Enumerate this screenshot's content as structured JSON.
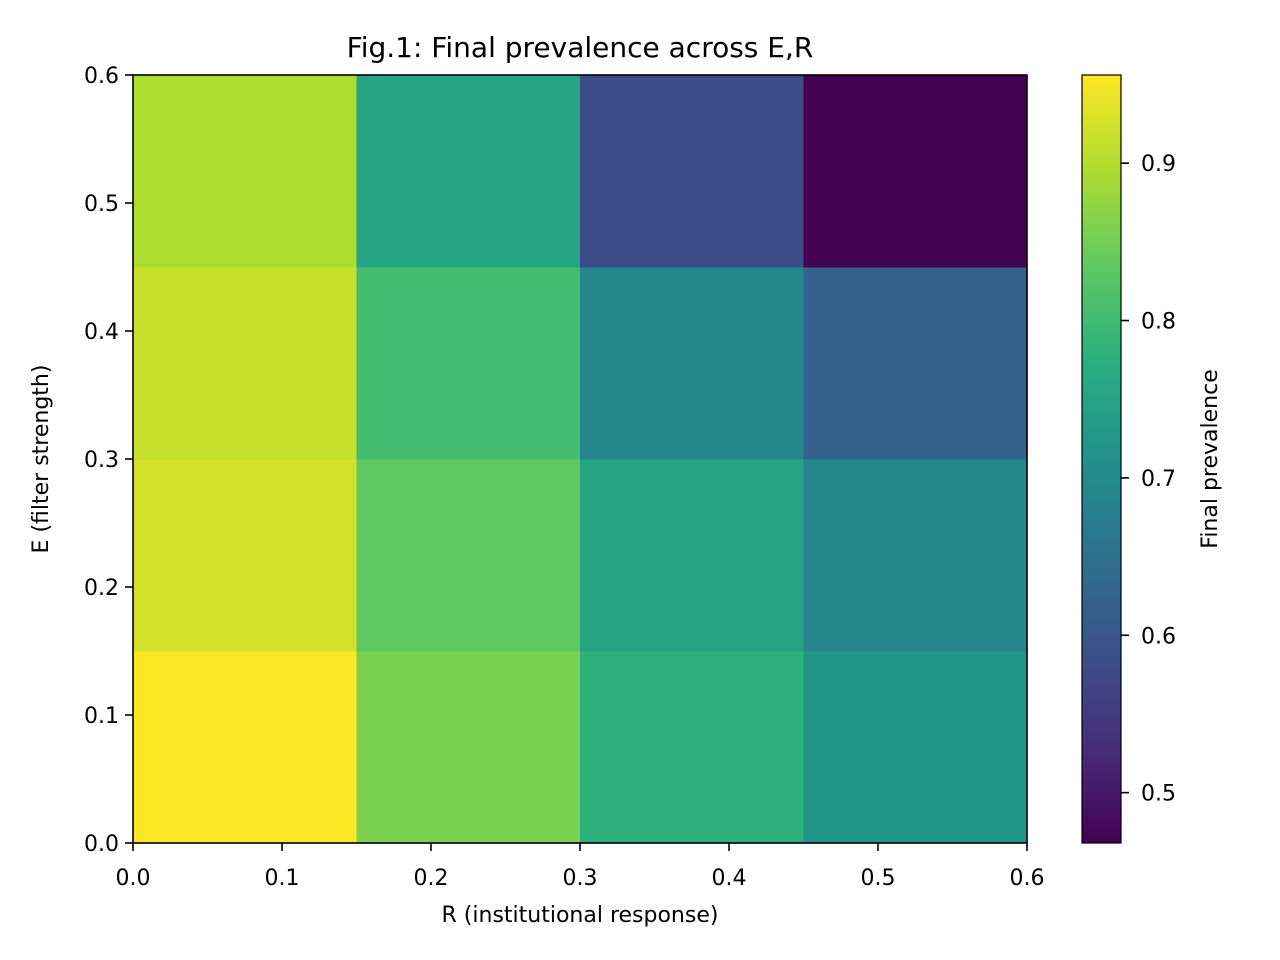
{
  "chart_data": {
    "type": "heatmap",
    "title": "Fig.1: Final prevalence across E,R",
    "xlabel": "R (institutional response)",
    "ylabel": "E (filter strength)",
    "xlim": [
      0.0,
      0.6
    ],
    "ylim": [
      0.0,
      0.6
    ],
    "x_edges": [
      0.0,
      0.15,
      0.3,
      0.45,
      0.6
    ],
    "y_edges": [
      0.0,
      0.15,
      0.3,
      0.45,
      0.6
    ],
    "x_ticks": [
      "0.0",
      "0.1",
      "0.2",
      "0.3",
      "0.4",
      "0.5",
      "0.6"
    ],
    "y_ticks": [
      "0.0",
      "0.1",
      "0.2",
      "0.3",
      "0.4",
      "0.5",
      "0.6"
    ],
    "values": [
      [
        0.955,
        0.855,
        0.78,
        0.72
      ],
      [
        0.925,
        0.835,
        0.75,
        0.69
      ],
      [
        0.915,
        0.805,
        0.69,
        0.62
      ],
      [
        0.895,
        0.75,
        0.58,
        0.47
      ]
    ],
    "values_note_rows": "rows ordered from lowest E (bottom) to highest E (top); columns from lowest R (left) to highest R (right)",
    "colormap": "viridis",
    "colorbar": {
      "label": "Final prevalence",
      "min": 0.468,
      "max": 0.956,
      "ticks": [
        "0.5",
        "0.6",
        "0.7",
        "0.8",
        "0.9"
      ]
    },
    "grid": false
  }
}
